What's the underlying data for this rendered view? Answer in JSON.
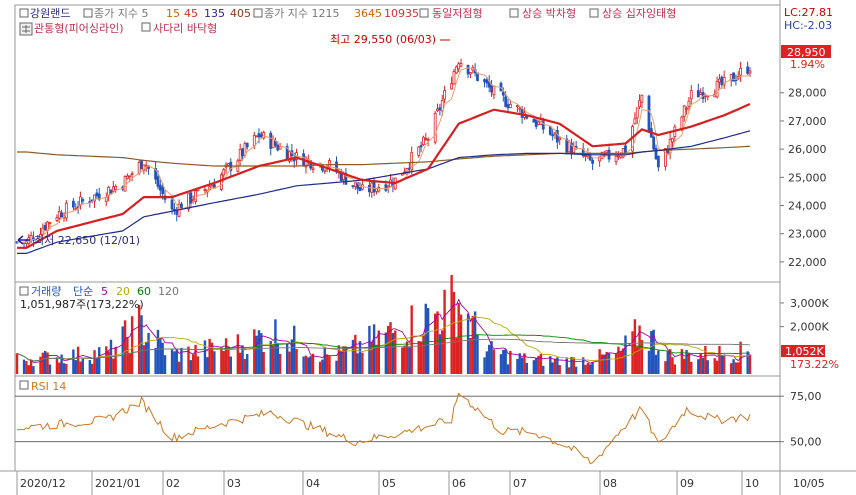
{
  "colors": {
    "up": "#dd2222",
    "down": "#2255bb",
    "ma5": "#e8a070",
    "ma20": "#d42020",
    "ma60": "#1f2a8a",
    "ma120": "#8b5a2b",
    "legend_gray": "#777777",
    "legend_orange": "#cc6600",
    "legend_navy": "#2a2a80",
    "legend_brown": "#8b3a1a",
    "legend_red": "#d03030",
    "lc_color": "#cc0000",
    "hc_color": "#2a44aa",
    "rsi": "#cc7722",
    "vol_ma5": "#aa00aa",
    "vol_ma20": "#bbaa00",
    "vol_ma60": "#008800",
    "vol_ma120": "#777777"
  },
  "header": {
    "stock_name": "강원랜드",
    "ma_label": "종가 지수 5",
    "ma_15": "15",
    "ma_45": "45",
    "ma_135": "135",
    "ma_405": "405",
    "ma2_label": "종가 지수 1215",
    "ma2_3645": "3645",
    "ma2_10935": "10935",
    "pattern1": "동일저점형",
    "pattern2": "상승 박차형",
    "pattern3": "상승 십자잉태형",
    "pattern4": "관통형(피어싱라인)",
    "pattern5": "사다리 바닥형"
  },
  "right_info": {
    "lc": "LC:27.81",
    "hc": "HC:-2.03",
    "current_price": "28,950",
    "change_pct": "1.94%"
  },
  "annotations": {
    "high": "최고 29,550 (06/03)",
    "low": "최저 22,650 (12/01)"
  },
  "volume_panel": {
    "legend_label": "거래량",
    "legend_simple": "단순",
    "legend_5": "5",
    "legend_20": "20",
    "legend_60": "60",
    "legend_120": "120",
    "info": "1,051,987주(173,22%)",
    "current": "1,052K",
    "current_pct": "173.22%",
    "axis_labels": [
      "3,000K",
      "2,000K"
    ],
    "axis_values": [
      3000,
      2000
    ]
  },
  "rsi_panel": {
    "legend": "RSI 14",
    "axis_labels": [
      "75,00",
      "50,00"
    ],
    "axis_values": [
      75,
      50
    ]
  },
  "x_labels": [
    "2020/12",
    "2021/01",
    "02",
    "03",
    "04",
    "05",
    "06",
    "07",
    "08",
    "09",
    "10",
    "10/05"
  ],
  "chart_data": [
    {
      "type": "candlestick",
      "y_axis_labels": [
        "28,000",
        "27,000",
        "26,000",
        "25,000",
        "24,000",
        "23,000",
        "22,000"
      ],
      "y_axis_values": [
        28000,
        27000,
        26000,
        25000,
        24000,
        23000,
        22000
      ],
      "ylim": [
        21500,
        29800
      ],
      "x_range": [
        "2020/11/27",
        "2021/10/05"
      ],
      "key_points_date": [
        "2020-12-01",
        "2020-12-14",
        "2021-01-11",
        "2021-01-20",
        "2021-02-01",
        "2021-02-19",
        "2021-03-10",
        "2021-03-26",
        "2021-04-09",
        "2021-04-23",
        "2021-05-07",
        "2021-05-21",
        "2021-06-03",
        "2021-06-18",
        "2021-07-02",
        "2021-07-16",
        "2021-07-30",
        "2021-08-13",
        "2021-08-20",
        "2021-08-27",
        "2021-09-10",
        "2021-09-24",
        "2021-10-05"
      ],
      "key_points_close": [
        22700,
        23700,
        24800,
        25600,
        23800,
        24800,
        26500,
        25700,
        25400,
        24500,
        24900,
        26400,
        29200,
        28000,
        27200,
        26300,
        25500,
        26000,
        27900,
        25300,
        27900,
        28300,
        28950
      ],
      "ma20_close": [
        22500,
        23100,
        23700,
        24300,
        24300,
        24800,
        25400,
        25700,
        25300,
        24900,
        24800,
        25300,
        26900,
        27400,
        27200,
        26900,
        26100,
        26200,
        26700,
        26500,
        26800,
        27200,
        27600
      ],
      "ma60_close": [
        22300,
        22700,
        23100,
        23600,
        23800,
        24100,
        24400,
        24700,
        24800,
        24900,
        25100,
        25300,
        25700,
        25800,
        25850,
        25850,
        25800,
        25800,
        25900,
        25950,
        26100,
        26400,
        26650
      ],
      "ma120_close": [
        25900,
        25800,
        25700,
        25600,
        25500,
        25400,
        25400,
        25400,
        25450,
        25450,
        25500,
        25550,
        25650,
        25750,
        25800,
        25850,
        25850,
        25850,
        25900,
        25950,
        26000,
        26050,
        26100
      ]
    },
    {
      "type": "bar",
      "title": "거래량",
      "ylim": [
        0,
        3800
      ],
      "key_points_date": [
        "2020-12-01",
        "2021-01-05",
        "2021-01-18",
        "2021-02-01",
        "2021-03-05",
        "2021-03-15",
        "2021-04-10",
        "2021-05-20",
        "2021-06-01",
        "2021-06-03",
        "2021-06-15",
        "2021-07-01",
        "2021-07-20",
        "2021-08-10",
        "2021-08-20",
        "2021-09-01",
        "2021-09-20",
        "2021-10-05"
      ],
      "key_points_value": [
        700,
        1000,
        2300,
        900,
        1400,
        2000,
        800,
        2600,
        3300,
        3400,
        1100,
        700,
        600,
        900,
        2100,
        850,
        950,
        1052
      ]
    },
    {
      "type": "line",
      "title": "RSI 14",
      "ylim": [
        35,
        85
      ],
      "key_points_date": [
        "2020-12-01",
        "2021-01-04",
        "2021-01-19",
        "2021-02-01",
        "2021-02-22",
        "2021-03-15",
        "2021-04-02",
        "2021-04-20",
        "2021-05-10",
        "2021-05-31",
        "2021-06-03",
        "2021-06-21",
        "2021-07-05",
        "2021-07-20",
        "2021-07-30",
        "2021-08-12",
        "2021-08-20",
        "2021-08-27",
        "2021-09-08",
        "2021-09-20",
        "2021-10-05"
      ],
      "key_points_value": [
        58,
        62,
        72,
        52,
        60,
        66,
        58,
        50,
        55,
        62,
        77,
        56,
        55,
        47,
        38,
        58,
        68,
        48,
        68,
        62,
        64
      ]
    }
  ]
}
